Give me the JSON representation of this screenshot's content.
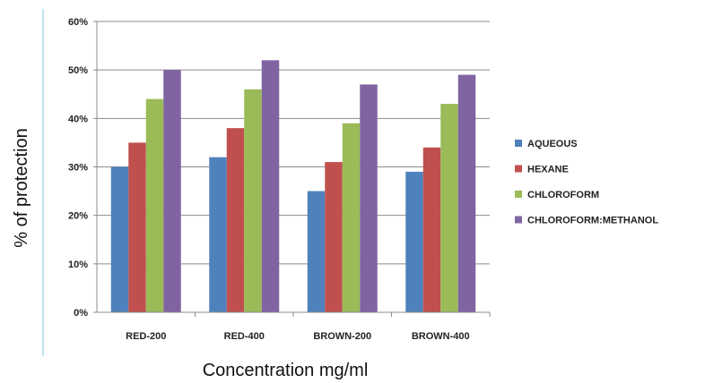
{
  "chart_data": {
    "type": "bar",
    "title": "",
    "xlabel": "Concentration mg/ml",
    "ylabel": "% of protection",
    "ylim": [
      0,
      60
    ],
    "ytick_step": 10,
    "ytick_suffix": "%",
    "grid": true,
    "legend_position": "right",
    "categories": [
      "RED-200",
      "RED-400",
      "BROWN-200",
      "BROWN-400"
    ],
    "series": [
      {
        "name": "AQUEOUS",
        "color": "#4F81BD",
        "values": [
          30,
          32,
          25,
          29
        ]
      },
      {
        "name": "HEXANE",
        "color": "#C0504D",
        "values": [
          35,
          38,
          31,
          34
        ]
      },
      {
        "name": "CHLOROFORM",
        "color": "#9BBB59",
        "values": [
          44,
          46,
          39,
          43
        ]
      },
      {
        "name": "CHLOROFORM:METHANOL",
        "color": "#8064A2",
        "values": [
          50,
          52,
          47,
          49
        ]
      }
    ]
  }
}
